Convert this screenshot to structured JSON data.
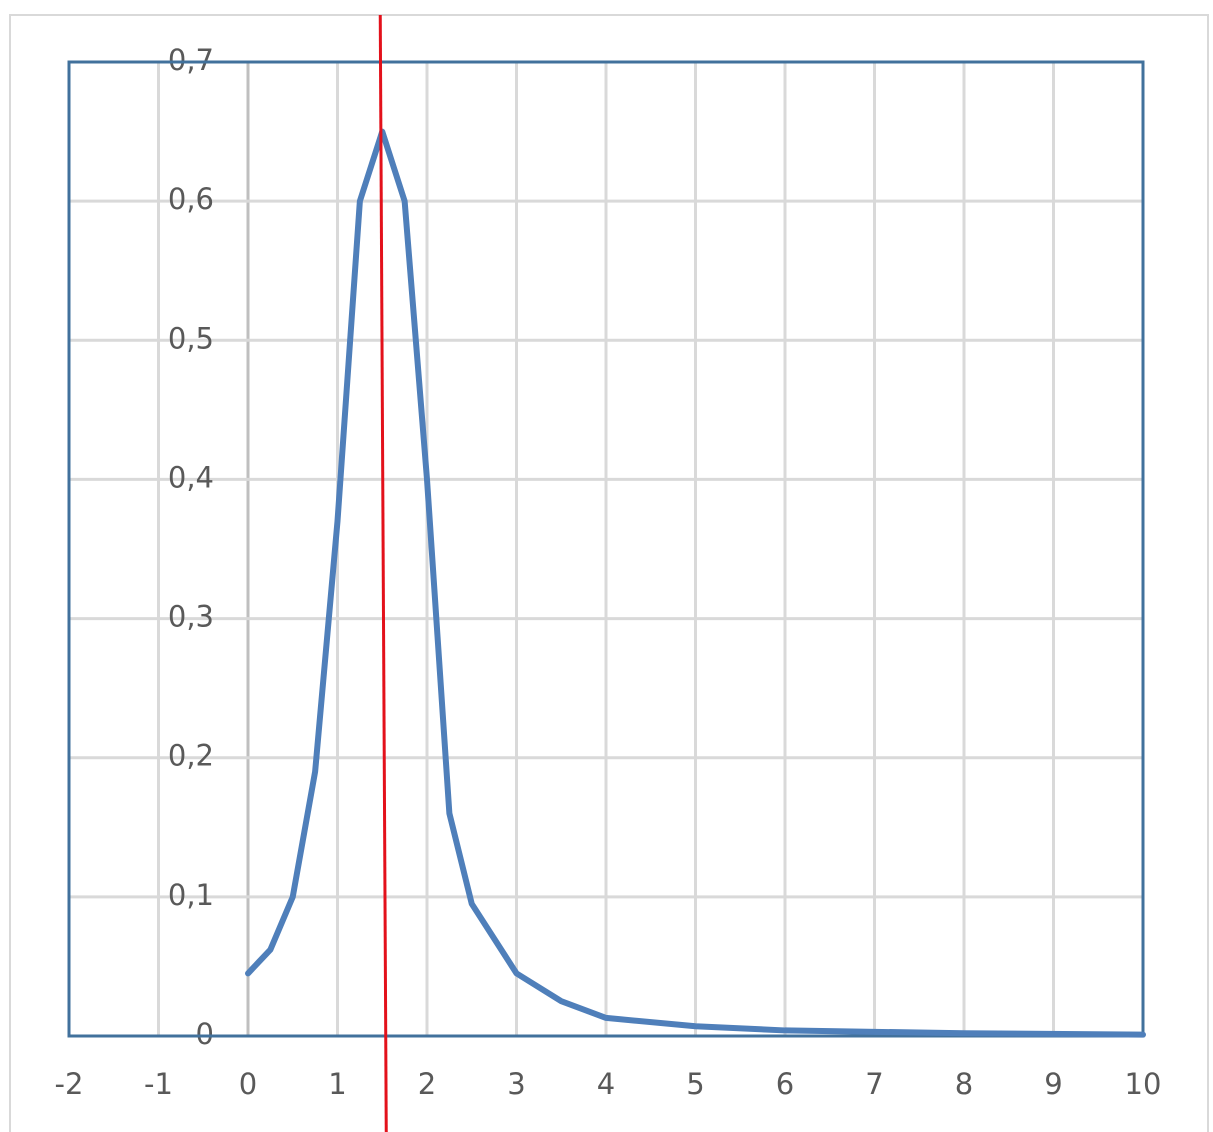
{
  "chart_data": {
    "type": "line",
    "x": [
      0,
      0.25,
      0.5,
      0.75,
      1,
      1.25,
      1.5,
      1.75,
      2,
      2.25,
      2.5,
      3,
      3.5,
      4,
      5,
      6,
      7,
      8,
      10
    ],
    "series": [
      {
        "color": "#4f7fba",
        "values": [
          0.045,
          0.062,
          0.1,
          0.19,
          0.37,
          0.6,
          0.65,
          0.6,
          0.4,
          0.16,
          0.095,
          0.045,
          0.025,
          0.013,
          0.007,
          0.004,
          0.003,
          0.002,
          0.001
        ]
      }
    ],
    "xlim": [
      -2,
      10
    ],
    "xticks": [
      -2,
      -1,
      0,
      1,
      2,
      3,
      4,
      5,
      6,
      7,
      8,
      9,
      10
    ],
    "ylim": [
      0,
      0.7
    ],
    "yticks": [
      0,
      {
        "value": 0.1,
        "label": "0,1"
      },
      {
        "value": 0.2,
        "label": "0,2"
      },
      {
        "value": 0.3,
        "label": "0,3"
      },
      {
        "value": 0.4,
        "label": "0,4"
      },
      {
        "value": 0.5,
        "label": "0,5"
      },
      {
        "value": 0.6,
        "label": "0,6"
      },
      {
        "value": 0.7,
        "label": "0,7"
      }
    ],
    "grid": true,
    "reference_line": {
      "x": 1.5,
      "color": "#e3111b"
    }
  }
}
